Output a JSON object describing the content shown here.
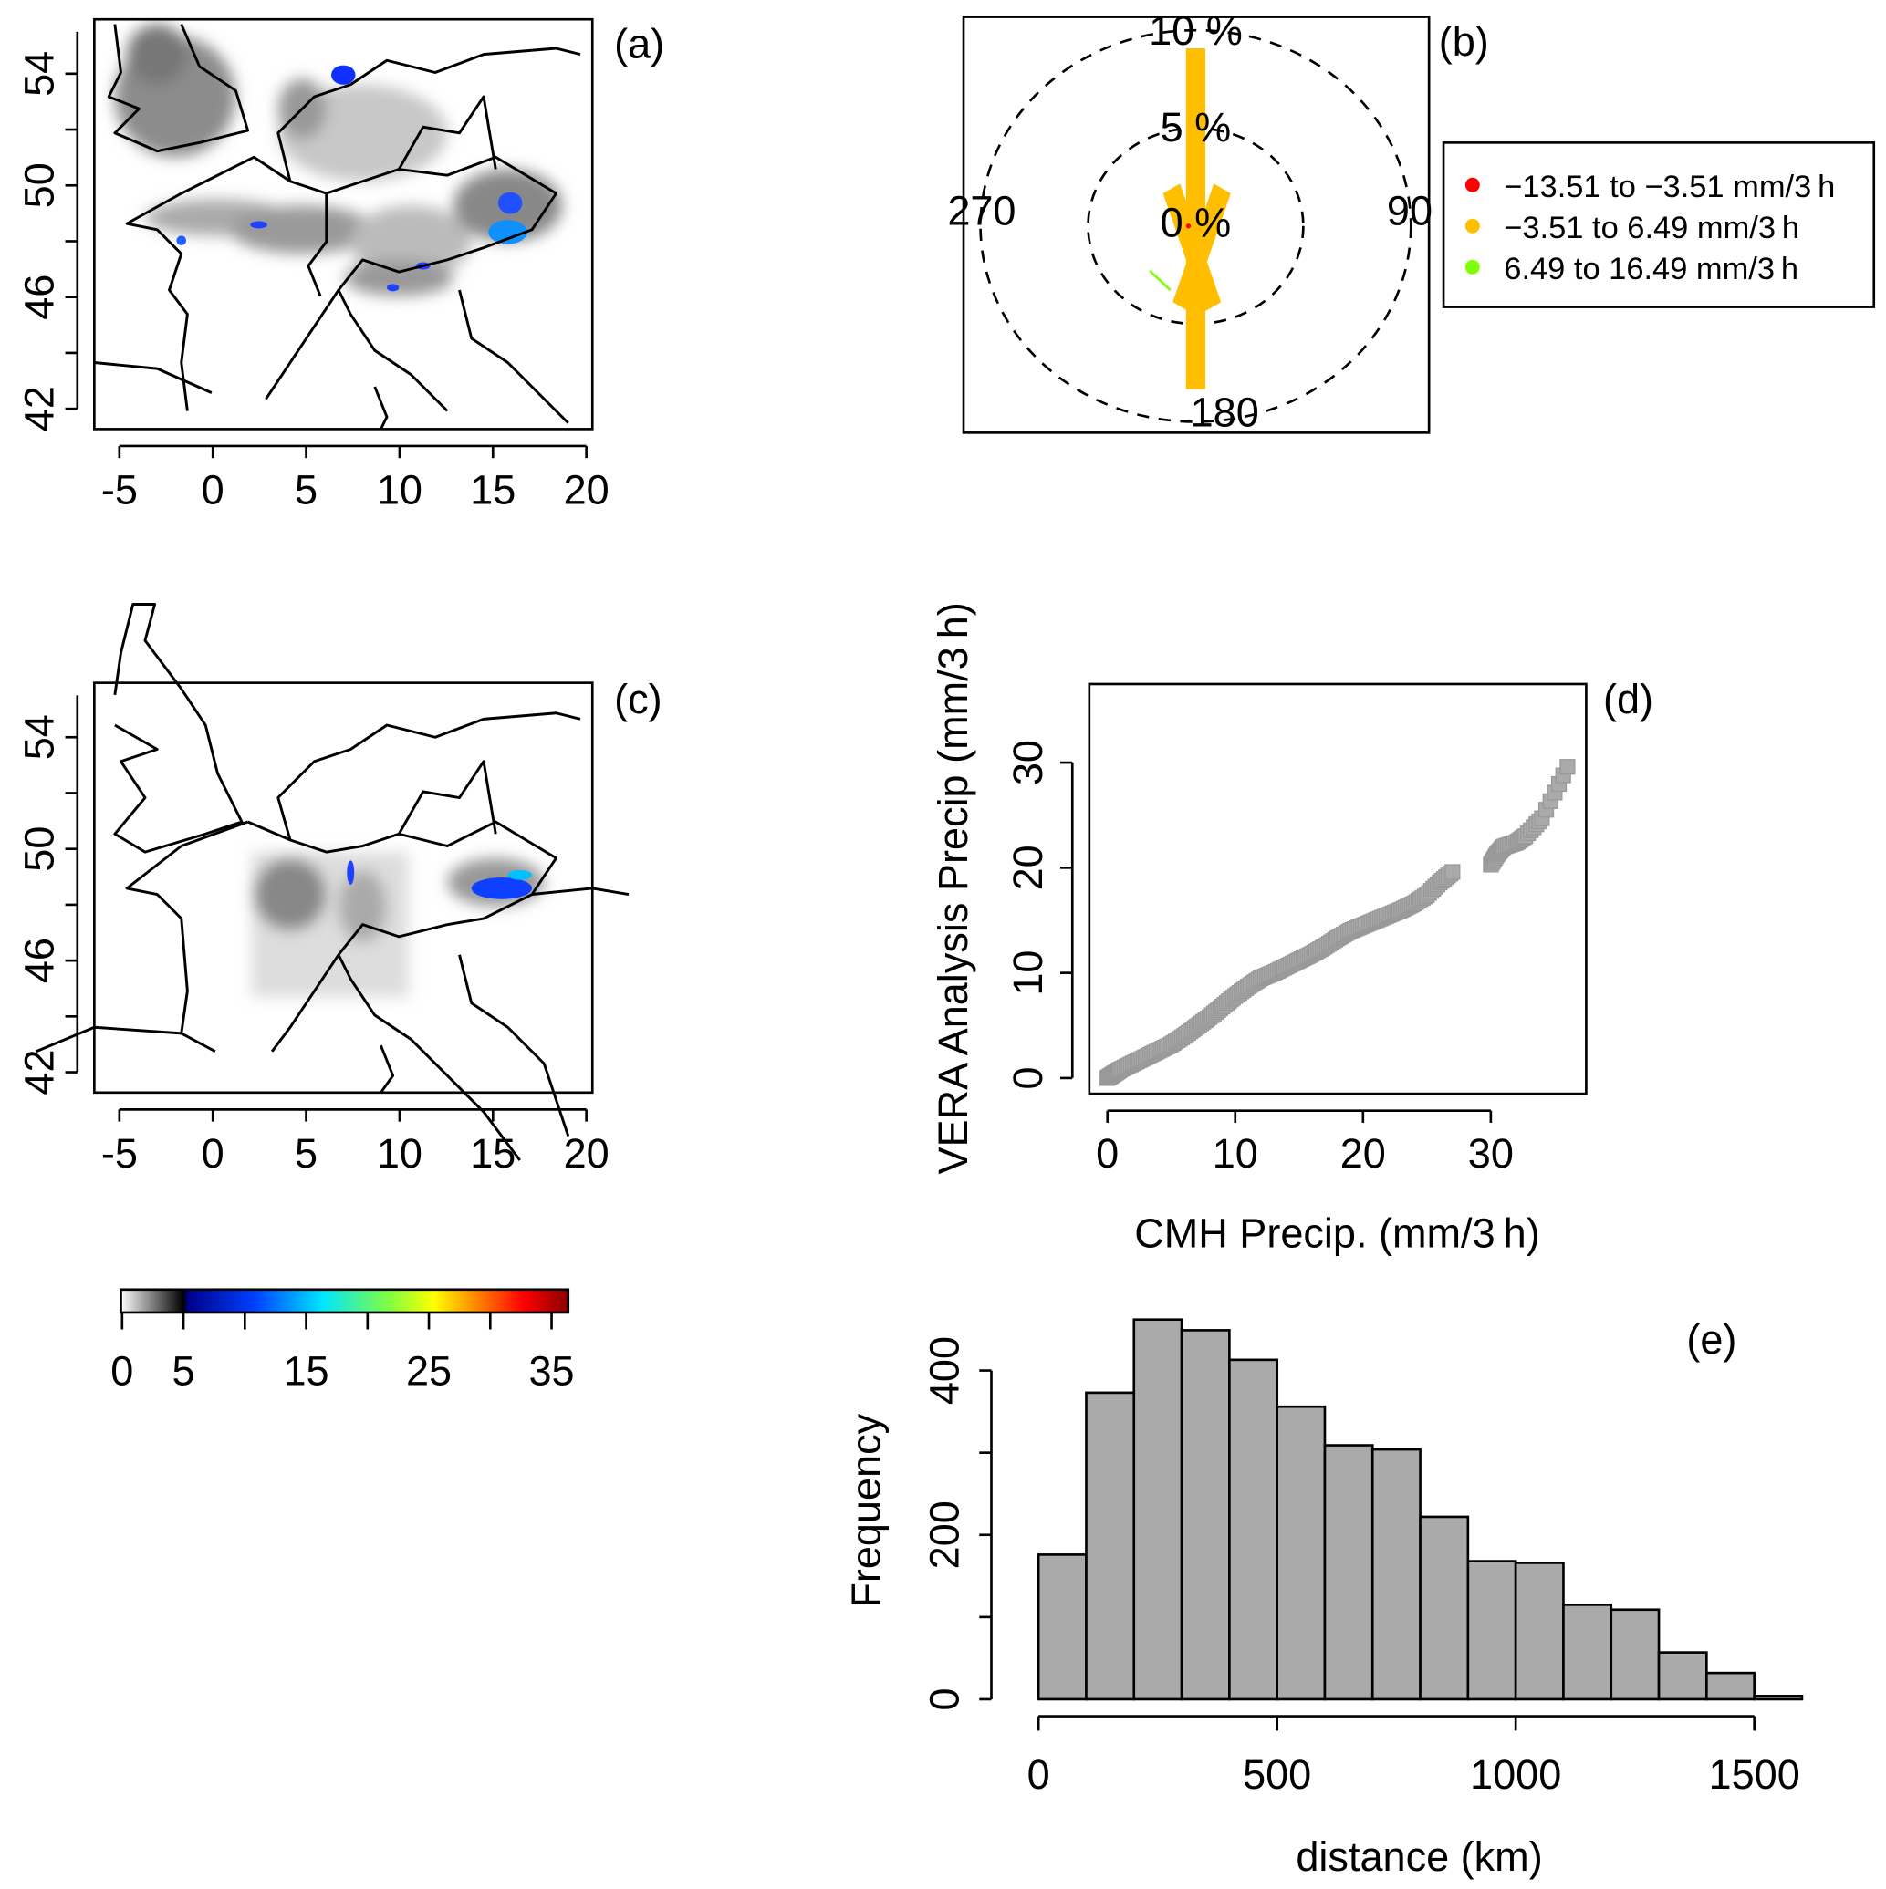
{
  "chart_data": [
    {
      "type": "heatmap",
      "panel_label": "(a)",
      "x_ticks": [
        "-5",
        "0",
        "5",
        "10",
        "15",
        "20"
      ],
      "y_ticks": [
        "54",
        "50",
        "46",
        "42"
      ],
      "xlim": [
        -6,
        21
      ],
      "ylim": [
        41.5,
        56
      ],
      "grid": false
    },
    {
      "type": "pie",
      "panel_label": "(b)",
      "ring_labels": [
        "10 %",
        "5 %",
        "0 %"
      ],
      "direction_labels": [
        "0",
        "90",
        "180",
        "270"
      ],
      "legend": {
        "placement": "right",
        "entries": [
          {
            "label": "−13.51 to −3.51 mm/3 h",
            "color": "#ff0000"
          },
          {
            "label": "−3.51 to 6.49 mm/3 h",
            "color": "#ffbf00"
          },
          {
            "label": "6.49 to 16.49 mm/3 h",
            "color": "#80ff00"
          }
        ]
      }
    },
    {
      "type": "heatmap",
      "panel_label": "(c)",
      "x_ticks": [
        "-5",
        "0",
        "5",
        "10",
        "15",
        "20"
      ],
      "y_ticks": [
        "54",
        "50",
        "46",
        "42"
      ],
      "xlim": [
        -6,
        21
      ],
      "ylim": [
        41.5,
        56
      ],
      "colorbar": {
        "ticks": [
          "0",
          "5",
          "15",
          "25",
          "35"
        ],
        "range": [
          0,
          36
        ]
      }
    },
    {
      "type": "scatter",
      "panel_label": "(d)",
      "xlabel": "CMH Precip. (mm/3 h)",
      "ylabel": "VERA Analysis Precip (mm/3 h)",
      "x_ticks": [
        "0",
        "10",
        "20",
        "30"
      ],
      "y_ticks": [
        "0",
        "10",
        "20",
        "30"
      ],
      "xlim": [
        -1.5,
        37.5
      ],
      "ylim": [
        -1.5,
        37.5
      ],
      "points": [
        [
          0,
          0
        ],
        [
          0.5,
          0.4
        ],
        [
          1,
          0.8
        ],
        [
          2,
          1.4
        ],
        [
          3,
          2
        ],
        [
          4,
          2.6
        ],
        [
          5,
          3.2
        ],
        [
          6,
          4
        ],
        [
          7,
          4.9
        ],
        [
          8,
          5.8
        ],
        [
          9,
          6.8
        ],
        [
          10,
          7.8
        ],
        [
          11,
          8.7
        ],
        [
          12,
          9.5
        ],
        [
          13,
          10
        ],
        [
          14,
          10.6
        ],
        [
          15,
          11.2
        ],
        [
          16,
          11.8
        ],
        [
          17,
          12.5
        ],
        [
          18,
          13.3
        ],
        [
          19,
          14
        ],
        [
          20,
          14.5
        ],
        [
          21,
          15
        ],
        [
          22,
          15.5
        ],
        [
          23,
          16
        ],
        [
          24,
          16.6
        ],
        [
          25,
          17.4
        ],
        [
          26,
          18.6
        ],
        [
          27,
          19.6
        ],
        [
          30,
          20.3
        ],
        [
          30.5,
          21.3
        ],
        [
          31,
          22
        ],
        [
          32,
          22.4
        ],
        [
          32.7,
          23
        ],
        [
          34,
          24.7
        ],
        [
          36,
          29.6
        ]
      ]
    },
    {
      "type": "bar",
      "panel_label": "(e)",
      "xlabel": "distance (km)",
      "ylabel": "Frequency",
      "x_ticks": [
        "0",
        "500",
        "1000",
        "1500"
      ],
      "y_ticks": [
        "0",
        "200",
        "400"
      ],
      "bin_width": 100,
      "bin_starts": [
        0,
        100,
        200,
        300,
        400,
        500,
        600,
        700,
        800,
        900,
        1000,
        1100,
        1200,
        1300,
        1400,
        1500
      ],
      "values": [
        176,
        373,
        462,
        449,
        413,
        356,
        309,
        304,
        222,
        168,
        166,
        115,
        109,
        57,
        32,
        4
      ],
      "ylim": [
        0,
        470
      ]
    }
  ]
}
